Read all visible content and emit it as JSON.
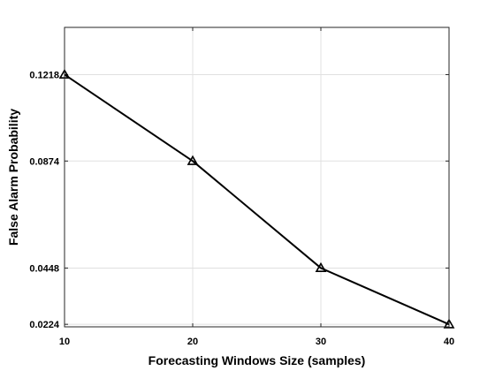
{
  "chart_data": {
    "type": "line",
    "title": "",
    "xlabel": "Forecasting Windows Size (samples)",
    "ylabel": "False Alarm Probability",
    "x": [
      10,
      20,
      30,
      40
    ],
    "series": [
      {
        "values": [
          0.1218,
          0.0874,
          0.0448,
          0.0224
        ],
        "color": "#000000",
        "marker": "triangle"
      }
    ],
    "xlim": [
      10,
      40
    ],
    "ylim": [
      0.0214,
      0.1406
    ],
    "xticks": [
      10,
      20,
      30,
      40
    ],
    "xtick_labels": [
      "10",
      "20",
      "30",
      "40"
    ],
    "yticks": [
      0.0224,
      0.0448,
      0.0874,
      0.1218
    ],
    "ytick_labels": [
      "0.0224",
      "0.0448",
      "0.0874",
      "0.1218"
    ],
    "grid": true
  }
}
